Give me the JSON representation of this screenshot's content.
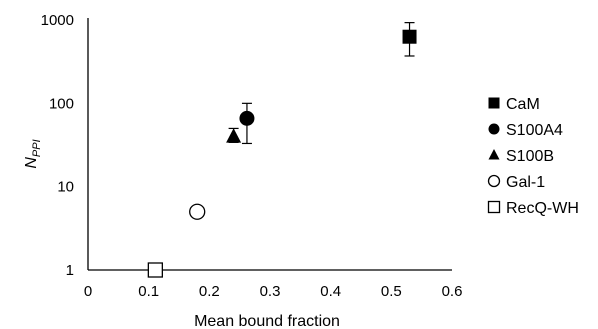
{
  "chart_data": {
    "type": "scatter",
    "xlabel": "Mean bound fraction",
    "ylabel_main": "N",
    "ylabel_sub": "PPI",
    "xlim": [
      0,
      0.6
    ],
    "ylim": [
      1,
      1000
    ],
    "yscale": "log",
    "x_ticks": [
      "0",
      "0.1",
      "0.2",
      "0.3",
      "0.4",
      "0.5",
      "0.6"
    ],
    "y_ticks": [
      "1",
      "10",
      "100",
      "1000"
    ],
    "legend_position": "right",
    "series": [
      {
        "name": "CaM",
        "marker": "square-filled",
        "x": 0.53,
        "y": 630,
        "err_low": 370,
        "err_high": 930
      },
      {
        "name": "S100A4",
        "marker": "circle-filled",
        "x": 0.262,
        "y": 66,
        "err_low": 33,
        "err_high": 100
      },
      {
        "name": "S100B",
        "marker": "triangle-filled",
        "x": 0.24,
        "y": 40,
        "err_low": 34,
        "err_high": 50
      },
      {
        "name": "Gal-1",
        "marker": "circle-open",
        "x": 0.18,
        "y": 5,
        "err_low": 4.5,
        "err_high": 5.5
      },
      {
        "name": "RecQ-WH",
        "marker": "square-open",
        "x": 0.111,
        "y": 1,
        "err_low": 1,
        "err_high": 1
      }
    ]
  }
}
